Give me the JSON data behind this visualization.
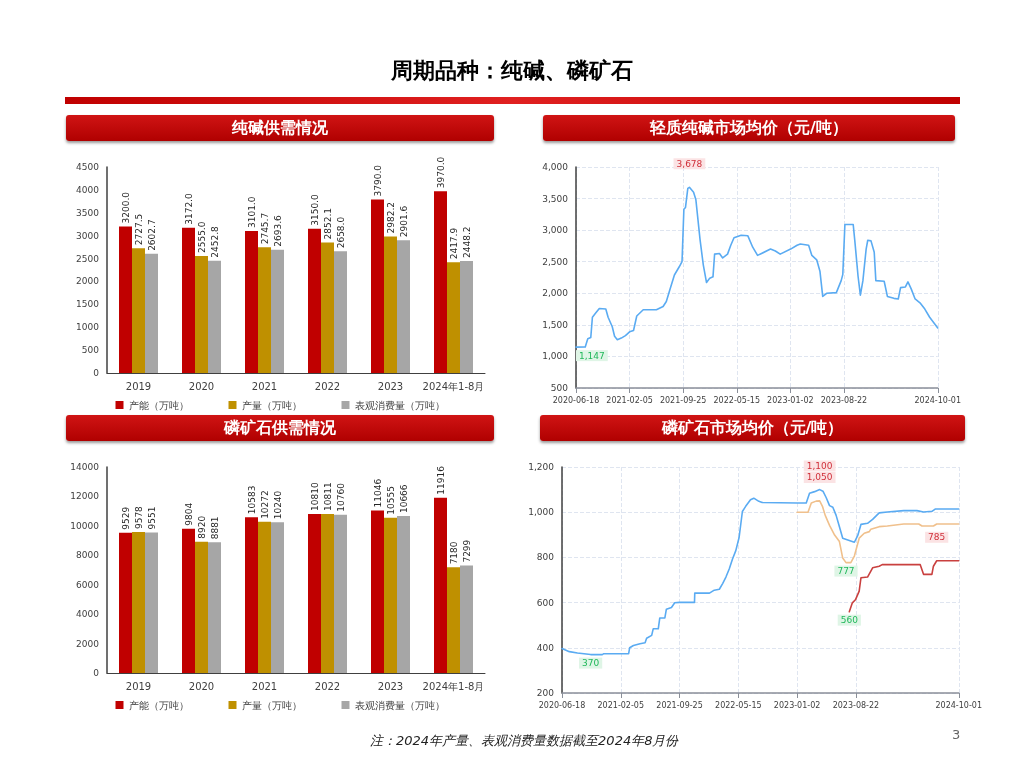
{
  "chart_data": [
    {
      "type": "other",
      "title": "周期品种：纯碱、磷矿石",
      "annotations": [
        "注：2024年产量、表观消费量数据截至2024年8月份",
        "3"
      ]
    },
    {
      "type": "bar",
      "title": "纯碱供需情况",
      "categories": [
        "2019",
        "2020",
        "2021",
        "2022",
        "2023",
        "2024年1-8月"
      ],
      "series": [
        {
          "name": "产能（万吨）",
          "color": "#c00000",
          "values": [
            3200,
            3172,
            3101,
            3150,
            3790,
            3970
          ],
          "value_labels": [
            "3200.0",
            "3172.0",
            "3101.0",
            "3150.0",
            "3790.0",
            "3970.0"
          ]
        },
        {
          "name": "产量（万吨）",
          "color": "#bf9000",
          "values": [
            2727.5,
            2555.0,
            2745.7,
            2852.1,
            2982.2,
            2417.9
          ],
          "value_labels": [
            "2727.5",
            "2555.0",
            "2745.7",
            "2852.1",
            "2982.2",
            "2417.9"
          ]
        },
        {
          "name": "表观消费量（万吨）",
          "color": "#a6a6a6",
          "values": [
            2602.7,
            2452.8,
            2693.6,
            2658.0,
            2901.6,
            2448.2
          ],
          "value_labels": [
            "2602.7",
            "2452.8",
            "2693.6",
            "2658.0",
            "2901.6",
            "2448.2"
          ]
        }
      ],
      "ylim": [
        0,
        4500
      ],
      "yticks": [
        0,
        500,
        1000,
        1500,
        2000,
        2500,
        3000,
        3500,
        4000,
        4500
      ],
      "legend": "bottom"
    },
    {
      "type": "line",
      "title": "轻质纯碱市场均价（元/吨）",
      "marker": "none",
      "grid": true,
      "series": [
        {
          "color": "#5aabf2",
          "x": [
            "2020-06-18",
            "2020-07-28",
            "2020-08-08",
            "2020-08-21",
            "2020-08-28",
            "2020-09-12",
            "2020-09-27",
            "2020-10-25",
            "2020-11-04",
            "2020-11-22",
            "2020-12-02",
            "2020-12-14",
            "2020-12-31",
            "2021-01-18",
            "2021-02-05",
            "2021-02-22",
            "2021-03-08",
            "2021-04-05",
            "2021-06-01",
            "2021-06-30",
            "2021-07-14",
            "2021-07-28",
            "2021-08-18",
            "2021-09-08",
            "2021-09-20",
            "2021-09-28",
            "2021-10-05",
            "2021-10-15",
            "2021-10-22",
            "2021-11-09",
            "2021-11-19",
            "2021-12-07",
            "2021-12-21",
            "2022-01-04",
            "2022-01-18",
            "2022-02-01",
            "2022-02-08",
            "2022-03-01",
            "2022-03-15",
            "2022-04-05",
            "2022-04-19",
            "2022-05-03",
            "2022-06-03",
            "2022-07-02",
            "2022-07-23",
            "2022-08-13",
            "2022-10-08",
            "2022-10-29",
            "2022-11-19",
            "2023-01-03",
            "2023-01-31",
            "2023-02-14",
            "2023-03-22",
            "2023-04-05",
            "2023-04-26",
            "2023-05-10",
            "2023-05-22",
            "2023-06-08",
            "2023-07-20",
            "2023-08-10",
            "2023-08-17",
            "2023-08-26",
            "2023-10-01",
            "2023-10-08",
            "2023-10-22",
            "2023-11-01",
            "2023-11-12",
            "2023-11-26",
            "2023-12-03",
            "2023-12-17",
            "2023-12-31",
            "2024-01-07",
            "2024-02-12",
            "2024-02-26",
            "2024-03-25",
            "2024-04-13",
            "2024-04-23",
            "2024-05-14",
            "2024-05-25",
            "2024-06-08",
            "2024-06-25",
            "2024-07-16",
            "2024-08-06",
            "2024-08-27",
            "2024-10-01"
          ],
          "values": [
            1147,
            1150,
            1280,
            1300,
            1620,
            1690,
            1760,
            1750,
            1620,
            1470,
            1320,
            1265,
            1290,
            1330,
            1390,
            1410,
            1640,
            1740,
            1740,
            1790,
            1870,
            2040,
            2290,
            2420,
            2500,
            3330,
            3360,
            3660,
            3678,
            3600,
            3480,
            2850,
            2450,
            2170,
            2240,
            2260,
            2620,
            2630,
            2560,
            2620,
            2760,
            2880,
            2920,
            2910,
            2730,
            2600,
            2700,
            2670,
            2620,
            2700,
            2760,
            2780,
            2760,
            2600,
            2530,
            2350,
            1950,
            2000,
            2010,
            2200,
            2300,
            3090,
            3090,
            2830,
            2270,
            1970,
            2200,
            2700,
            2840,
            2830,
            2650,
            2200,
            2190,
            1950,
            1920,
            1910,
            2090,
            2100,
            2180,
            2070,
            1910,
            1850,
            1750,
            1620,
            1450
          ]
        }
      ],
      "xlim": [
        "2020-06-18",
        "2024-10-01"
      ],
      "xticks": [
        {
          "value": "2020-06-18",
          "label": "2020-06-18"
        },
        {
          "value": "2021-02-05",
          "label": "2021-02-05"
        },
        {
          "value": "2021-09-25",
          "label": "2021-09-25"
        },
        {
          "value": "2022-05-15",
          "label": "2022-05-15"
        },
        {
          "value": "2023-01-02",
          "label": "2023-01-02"
        },
        {
          "value": "2023-08-22",
          "label": "2023-08-22"
        },
        {
          "value": "2024-10-01",
          "label": "2024-10-01"
        }
      ],
      "ylim": [
        500,
        4000
      ],
      "yticks": [
        {
          "value": 500,
          "label": "500"
        },
        {
          "value": 1000,
          "label": "1,000"
        },
        {
          "value": 1500,
          "label": "1,500"
        },
        {
          "value": 2000,
          "label": "2,000"
        },
        {
          "value": 2500,
          "label": "2,500"
        },
        {
          "value": 3000,
          "label": "3,000"
        },
        {
          "value": 3500,
          "label": "3,500"
        },
        {
          "value": 4000,
          "label": "4,000"
        }
      ],
      "annotations": [
        {
          "text": "3,678",
          "x": "2021-10-22",
          "y": 3678
        },
        {
          "text": "1,147",
          "x": "2020-06-18",
          "y": 1147
        }
      ]
    },
    {
      "type": "bar",
      "title": "磷矿石供需情况",
      "categories": [
        "2019",
        "2020",
        "2021",
        "2022",
        "2023",
        "2024年1-8月"
      ],
      "data_labels": true,
      "series": [
        {
          "name": "产能（万吨）",
          "color": "#c00000",
          "values": [
            9529,
            9804,
            10583,
            10810,
            11046,
            11916
          ]
        },
        {
          "name": "产量（万吨）",
          "color": "#bf9000",
          "values": [
            9578,
            8920,
            10272,
            10811,
            10555,
            7180
          ]
        },
        {
          "name": "表观消费量（万吨）",
          "color": "#a6a6a6",
          "values": [
            9551,
            8881,
            10240,
            10760,
            10666,
            7299
          ]
        }
      ],
      "ylim": [
        0,
        14000
      ],
      "yticks": [
        0,
        2000,
        4000,
        6000,
        8000,
        10000,
        12000,
        14000
      ],
      "legend": "bottom"
    },
    {
      "type": "line",
      "title": "磷矿石市场均价（元/吨）",
      "marker": "none",
      "grid": true,
      "series": [
        {
          "color": "#5aabf2",
          "x": [
            "2020-06-18",
            "2020-07-17",
            "2020-08-18",
            "2020-10-09",
            "2020-11-24",
            "2020-11-30",
            "2021-03-08",
            "2021-03-12",
            "2021-03-27",
            "2021-04-22",
            "2021-05-12",
            "2021-05-18",
            "2021-06-07",
            "2021-06-13",
            "2021-07-03",
            "2021-07-09",
            "2021-07-29",
            "2021-08-04",
            "2021-08-24",
            "2021-09-06",
            "2021-09-25",
            "2021-11-23",
            "2021-11-24",
            "2022-01-21",
            "2022-02-09",
            "2022-03-01",
            "2022-03-14",
            "2022-03-27",
            "2022-04-09",
            "2022-04-22",
            "2022-05-05",
            "2022-05-18",
            "2022-05-31",
            "2022-06-13",
            "2022-07-02",
            "2022-07-15",
            "2022-08-04",
            "2022-08-17",
            "2023-01-02",
            "2023-02-07",
            "2023-02-20",
            "2023-03-12",
            "2023-04-01",
            "2023-04-14",
            "2023-04-27",
            "2023-05-10",
            "2023-05-23",
            "2023-06-05",
            "2023-06-18",
            "2023-07-01",
            "2023-08-16",
            "2023-08-29",
            "2023-09-11",
            "2023-10-07",
            "2023-10-27",
            "2023-11-22",
            "2023-12-24",
            "2024-02-27",
            "2024-04-19",
            "2024-05-15",
            "2024-06-17",
            "2024-06-30",
            "2024-10-01"
          ],
          "values": [
            397,
            383,
            377,
            370,
            370,
            374,
            374,
            400,
            410,
            418,
            422,
            442,
            455,
            484,
            484,
            532,
            532,
            571,
            578,
            599,
            601,
            601,
            642,
            642,
            655,
            659,
            684,
            713,
            749,
            793,
            830,
            888,
            1003,
            1026,
            1055,
            1062,
            1048,
            1043,
            1041,
            1041,
            1084,
            1091,
            1100,
            1093,
            1064,
            1029,
            1022,
            986,
            936,
            885,
            867,
            896,
            946,
            951,
            968,
            997,
            1001,
            1007,
            1007,
            1001,
            1004,
            1014,
            1014
          ]
        },
        {
          "color": "#f0c08c",
          "x": [
            "2023-01-02",
            "2023-02-14",
            "2023-02-27",
            "2023-03-18",
            "2023-04-01",
            "2023-04-12",
            "2023-04-23",
            "2023-05-10",
            "2023-05-30",
            "2023-06-18",
            "2023-07-01",
            "2023-07-14",
            "2023-08-02",
            "2023-08-16",
            "2023-09-04",
            "2023-09-24",
            "2023-10-14",
            "2023-10-20",
            "2023-11-22",
            "2023-12-24",
            "2024-02-27",
            "2024-04-26",
            "2024-05-09",
            "2024-06-23",
            "2024-07-06",
            "2024-10-01"
          ],
          "values": [
            1000,
            1000,
            1041,
            1049,
            1050,
            1026,
            986,
            942,
            899,
            870,
            797,
            777,
            777,
            806,
            885,
            907,
            914,
            925,
            936,
            939,
            948,
            948,
            939,
            939,
            948,
            948
          ]
        },
        {
          "color": "#c9403f",
          "x": [
            "2023-07-27",
            "2023-08-08",
            "2023-08-21",
            "2023-09-04",
            "2023-09-11",
            "2023-10-07",
            "2023-10-27",
            "2023-11-22",
            "2023-12-04",
            "2024-05-02",
            "2024-05-15",
            "2024-06-17",
            "2024-06-23",
            "2024-07-06",
            "2024-10-01"
          ],
          "values": [
            560,
            599,
            614,
            651,
            710,
            713,
            754,
            761,
            768,
            768,
            725,
            725,
            761,
            785,
            785
          ]
        }
      ],
      "xlim": [
        "2020-06-18",
        "2024-10-01"
      ],
      "xticks": [
        {
          "value": "2020-06-18",
          "label": "2020-06-18"
        },
        {
          "value": "2021-02-05",
          "label": "2021-02-05"
        },
        {
          "value": "2021-09-25",
          "label": "2021-09-25"
        },
        {
          "value": "2022-05-15",
          "label": "2022-05-15"
        },
        {
          "value": "2023-01-02",
          "label": "2023-01-02"
        },
        {
          "value": "2023-08-22",
          "label": "2023-08-22"
        },
        {
          "value": "2024-10-01",
          "label": "2024-10-01"
        }
      ],
      "ylim": [
        200,
        1200
      ],
      "yticks": [
        {
          "value": 200,
          "label": "200"
        },
        {
          "value": 400,
          "label": "400"
        },
        {
          "value": 600,
          "label": "600"
        },
        {
          "value": 800,
          "label": "800"
        },
        {
          "value": 1000,
          "label": "1,000"
        },
        {
          "value": 1200,
          "label": "1,200"
        }
      ],
      "annotations": [
        {
          "text": "370",
          "x": "2020-10-09",
          "y": 370
        },
        {
          "text": "1,100",
          "x": "2023-04-01",
          "y": 1100
        },
        {
          "text": "1,050",
          "x": "2023-04-01",
          "y": 1050
        },
        {
          "text": "777",
          "x": "2023-07-14",
          "y": 777
        },
        {
          "text": "560",
          "x": "2023-07-27",
          "y": 560
        },
        {
          "text": "785",
          "x": "2024-07-06",
          "y": 785
        }
      ]
    }
  ]
}
